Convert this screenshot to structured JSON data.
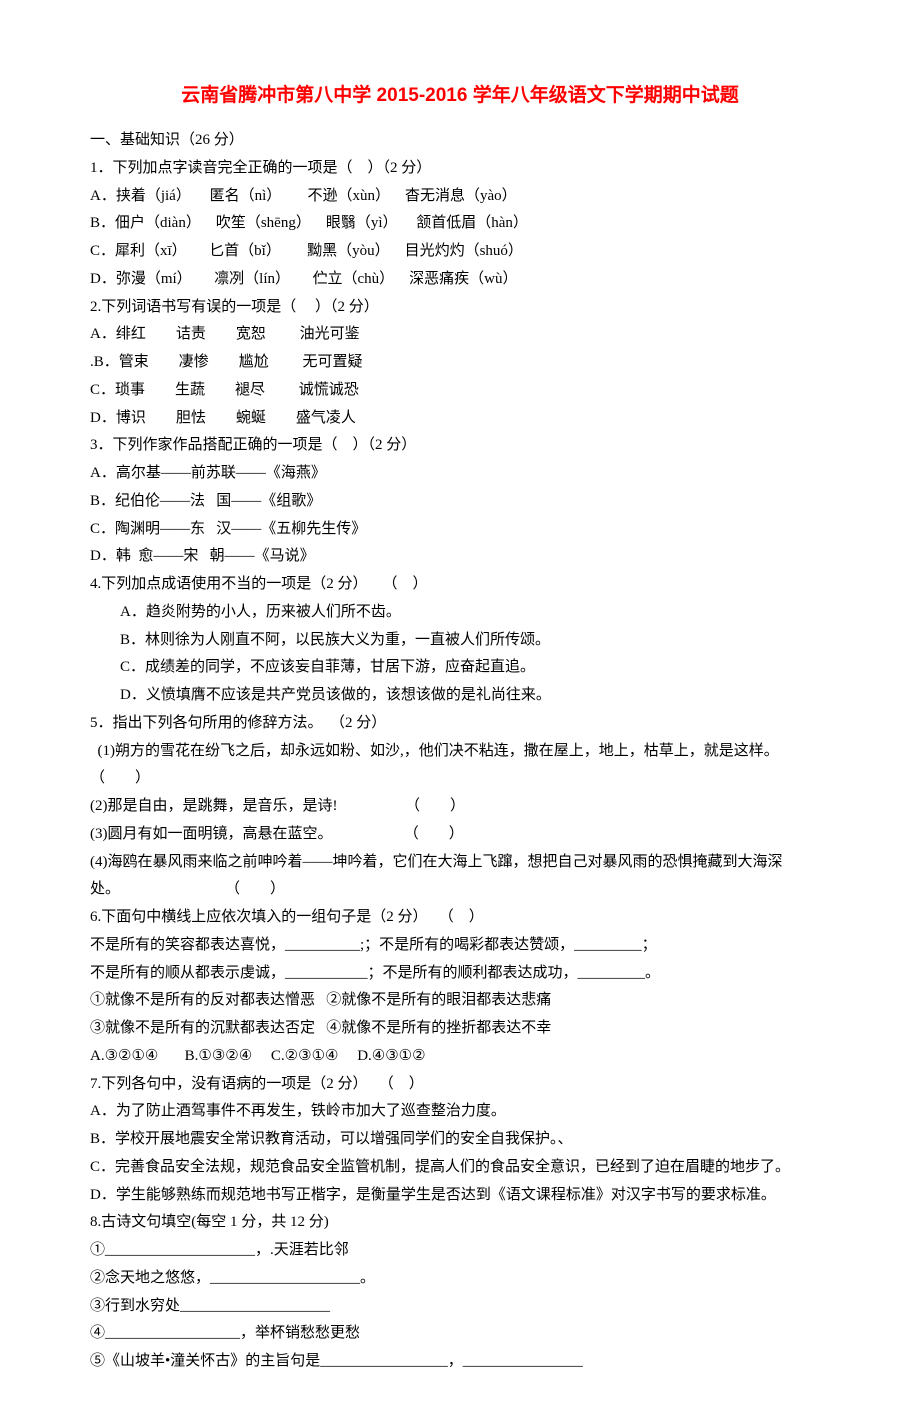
{
  "title": "云南省腾冲市第八中学 2015-2016 学年八年级语文下学期期中试题",
  "section1_header": "一、基础知识（26 分）",
  "q1": {
    "stem": "1．下列加点字读音完全正确的一项是（    ）（2 分）",
    "optA": "A．挟着（jiá）     匿名（nì）       不逊（xùn）    杳无消息（yào）",
    "optB": "B．佃户（diàn）    吹笙（shēng）    眼翳（yì）     颔首低眉（hàn）",
    "optC": "C．犀利（xī）      匕首（bǐ）       黝黑（yòu）    目光灼灼（shuó）",
    "optD": "D．弥漫（mí）      凛冽（lín）      伫立（chù）    深恶痛疾（wù）"
  },
  "q2": {
    "stem": "2.下列词语书写有误的一项是（     ）（2 分）",
    "optA": "A．绯红        诘责        宽恕         油光可鉴",
    "optB": ".B．管束        凄惨        尴尬         无可置疑",
    "optC": "C．琐事        生蔬        褪尽         诚慌诚恐",
    "optD": "D．博识        胆怯        蜿蜒        盛气凌人"
  },
  "q3": {
    "stem": "3．下列作家作品搭配正确的一项是（    ）（2 分）",
    "optA": "A．高尔基——前苏联——《海燕》",
    "optB": "B．纪伯伦——法   国——《组歌》",
    "optC": "C．陶渊明——东   汉——《五柳先生传》",
    "optD": "D．韩  愈——宋   朝——《马说》"
  },
  "q4": {
    "stem": "4.下列加点成语使用不当的一项是（2 分）    （    ）",
    "optA": "A．趋炎附势的小人，历来被人们所不齿。",
    "optB": "B．林则徐为人刚直不阿，以民族大义为重，一直被人们所传颂。",
    "optC": "C．成绩差的同学，不应该妄自菲薄，甘居下游，应奋起直追。",
    "optD": "D．义愤填膺不应该是共产党员该做的，该想该做的是礼尚往来。"
  },
  "q5": {
    "stem": "5．指出下列各句所用的修辞方法。  （2 分）",
    "sub1top": "  (1)朔方的雪花在纷飞之后，却永远如粉、如沙,，他们决不粘连，撒在屋上，地上，枯草上，就是这样。",
    "sub1bottom": "（        ）",
    "sub2": "(2)那是自由，是跳舞，是音乐，是诗!                  （        ）",
    "sub3": "(3)圆月有如一面明镜，高悬在蓝空。                   （        ）",
    "sub4top": "(4)海鸥在暴风雨来临之前呻吟着——坤吟着，它们在大海上飞蹿，想把自己对暴风雨的恐惧掩藏到大海深",
    "sub4bottom": "处。                            （        ）"
  },
  "q6": {
    "stem": "6.下面句中横线上应依次填入的一组句子是（2 分）   （    ）",
    "line1": "不是所有的笑容都表达喜悦，__________;；不是所有的喝彩都表达赞颂，_________；",
    "line2": "不是所有的顺从都表示虔诚，___________；不是所有的顺利都表达成功，_________。",
    "line3": "①就像不是所有的反对都表达憎恶   ②就像不是所有的眼泪都表达悲痛",
    "line4": "③就像不是所有的沉默都表达否定   ④就像不是所有的挫折都表达不幸",
    "opts": "A.③②①④       B.①③②④     C.②③①④     D.④③①②"
  },
  "q7": {
    "stem": "7.下列各句中，没有语病的一项是（2 分）   （    ）",
    "optA": "A．为了防止酒驾事件不再发生，铁岭市加大了巡查整治力度。",
    "optB": "B．学校开展地震安全常识教育活动，可以增强同学们的安全自我保护。、",
    "optC": "C．完善食品安全法规，规范食品安全监管机制，提高人们的食品安全意识，已经到了迫在眉睫的地步了。",
    "optD": "D．学生能够熟练而规范地书写正楷字，是衡量学生是否达到《语文课程标准》对汉字书写的要求标准。"
  },
  "q8": {
    "stem": "8.古诗文句填空(每空 1 分，共 12 分)",
    "item1": "①____________________，.天涯若比邻",
    "item2": "②念天地之悠悠，____________________。",
    "item3": "③行到水穷处____________________",
    "item4": "④__________________，举杯销愁愁更愁",
    "item5": "⑤《山坡羊•潼关怀古》的主旨句是_________________，________________"
  },
  "colors": {
    "title_color": "#ff0000",
    "text_color": "#000000",
    "background": "#ffffff"
  },
  "typography": {
    "title_font": "SimHei",
    "body_font": "SimSun",
    "title_size": 19,
    "body_size": 15,
    "line_height": 1.85
  }
}
